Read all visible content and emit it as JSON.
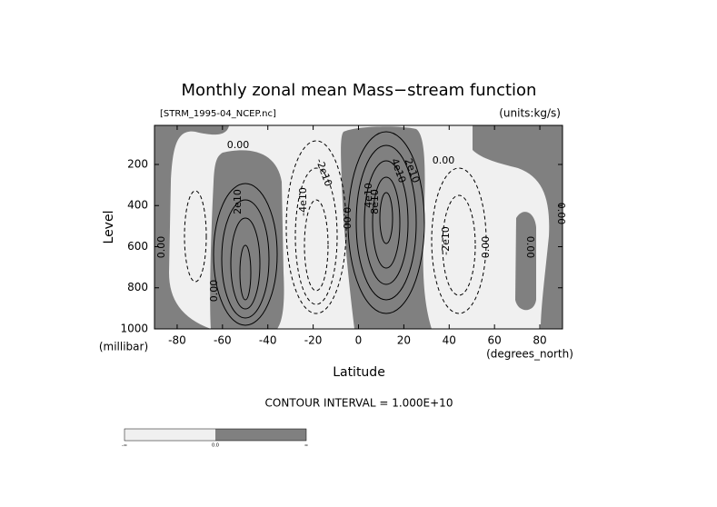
{
  "chart_data": {
    "type": "contour",
    "title": "Monthly zonal mean Mass−stream function",
    "subtitle": "[STRM_1995-04_NCEP.nc]",
    "units_label": "(units:kg/s)",
    "x_label": "Latitude",
    "y_label": "Level",
    "x_unit_label": "(degrees_north)",
    "y_unit_label": "(millibar)",
    "xlim": [
      -90,
      90
    ],
    "xticks": [
      -80,
      -60,
      -40,
      -20,
      0,
      20,
      40,
      60,
      80
    ],
    "ylim": [
      1000,
      10
    ],
    "yticks": [
      200,
      400,
      600,
      800,
      1000
    ],
    "annotation": "CONTOUR INTERVAL = 1.000E+10",
    "negative_color": "#f0f0f0",
    "positive_color": "#808080",
    "contour_labels": [
      "0.00",
      "2e10",
      "0.00",
      "0.00",
      "-2e10",
      "-4e10",
      "0.00",
      "4e10",
      "8e10",
      "4e10",
      "2e10",
      "0.00",
      "-2e10",
      "0.00",
      "0.00",
      "0.00"
    ],
    "colorbar_labels": [
      "-∞",
      "0.0",
      "∞"
    ]
  }
}
